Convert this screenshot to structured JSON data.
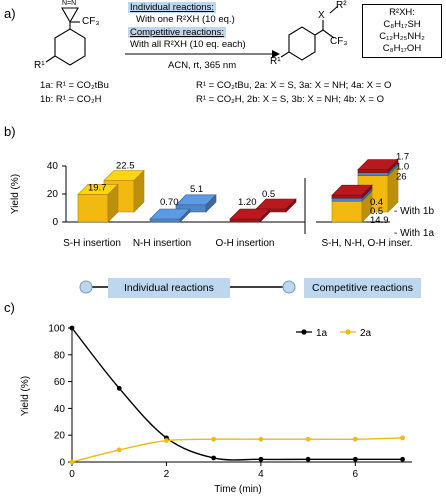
{
  "panel_labels": {
    "a": "a)",
    "b": "b)",
    "c": "c)"
  },
  "scheme": {
    "reactant_top": "N=N",
    "reactant_cf3": "CF₃",
    "reactant_r": "R¹",
    "individual_title": "Individual reactions:",
    "individual_detail": "With one R²XH (10 eq.)",
    "competitive_title": "Competitive reactions:",
    "competitive_detail": "With all R²XH (10 eq. each)",
    "conditions": "ACN, rt, 365 nm",
    "product_x": "X",
    "product_r2": "R²",
    "product_cf3": "CF₃",
    "product_r1": "R¹",
    "reactant_1a": "1a: R¹ = CO₂tBu",
    "reactant_1b": "1b: R¹ = CO₂H",
    "product_line_1": "R¹ = CO₂tBu, 2a: X = S, 3a: X = NH; 4a: X = O",
    "product_line_2": "R¹ = CO₂H, 2b: X = S, 3b: X = NH; 4b: X = O",
    "reagent_box": [
      "R²XH:",
      "C₈H₁₇SH",
      "C₁₂H₂₅NH₂",
      "C₈H₁₇OH"
    ]
  },
  "colors": {
    "sh": "#f2b90f",
    "nh": "#4f86c6",
    "oh": "#a0151a",
    "line_1a": "#000000",
    "line_2a": "#f2b90f",
    "pill": "#bcd7ef"
  },
  "chart_data": [
    {
      "type": "bar",
      "subtype": "3d-grouped",
      "ylabel": "Yield (%)",
      "ylim": [
        0,
        40
      ],
      "yticks": [
        0,
        20,
        40
      ],
      "categories": [
        "S-H insertion",
        "N-H insertion",
        "O-H insertion",
        "S-H, N-H, O-H inser."
      ],
      "series": [
        {
          "name": "With 1a",
          "values": {
            "S-H insertion": 19.7,
            "N-H insertion": 0.7,
            "O-H insertion": 1.2
          }
        },
        {
          "name": "With 1b",
          "values": {
            "S-H insertion": 22.5,
            "N-H insertion": 5.1,
            "O-H insertion": 0.5
          }
        }
      ],
      "competitive_stack": {
        "With 1a": {
          "S-H": 14.9,
          "N-H": 0.5,
          "O-H": 0.4
        },
        "With 1b": {
          "S-H": 26,
          "N-H": 1.0,
          "O-H": 1.7
        }
      },
      "data_labels": {
        "sh_1a": "19.7",
        "sh_1b": "22.5",
        "nh_1a": "0.70",
        "nh_1b": "5.1",
        "oh_1a": "1.20",
        "oh_1b": "0.5",
        "comp_1a_sh": "14.9",
        "comp_1a_nh": "0.5",
        "comp_1a_oh": "0.4",
        "comp_1b_sh": "26",
        "comp_1b_nh": "1.0",
        "comp_1b_oh": "1.7"
      },
      "series_labels": {
        "with_1b": "- With 1b",
        "with_1a": "- With 1a"
      },
      "footer": {
        "individual": "Individual reactions",
        "competitive": "Competitive reactions"
      }
    },
    {
      "type": "line",
      "xlabel": "Time (min)",
      "ylabel": "Yield (%)",
      "xlim": [
        0,
        7.2
      ],
      "ylim": [
        0,
        100
      ],
      "xticks": [
        0,
        2,
        4,
        6
      ],
      "yticks": [
        0,
        20,
        40,
        60,
        80,
        100
      ],
      "legend_position": "top-right",
      "series": [
        {
          "name": "1a",
          "x": [
            0,
            1,
            2,
            3,
            4,
            5,
            6,
            7
          ],
          "y": [
            100,
            55,
            18,
            3,
            2,
            2,
            2,
            2
          ]
        },
        {
          "name": "2a",
          "x": [
            0,
            1,
            2,
            3,
            4,
            5,
            6,
            7
          ],
          "y": [
            0,
            9,
            16,
            17,
            17,
            17,
            17,
            18
          ]
        }
      ]
    }
  ]
}
